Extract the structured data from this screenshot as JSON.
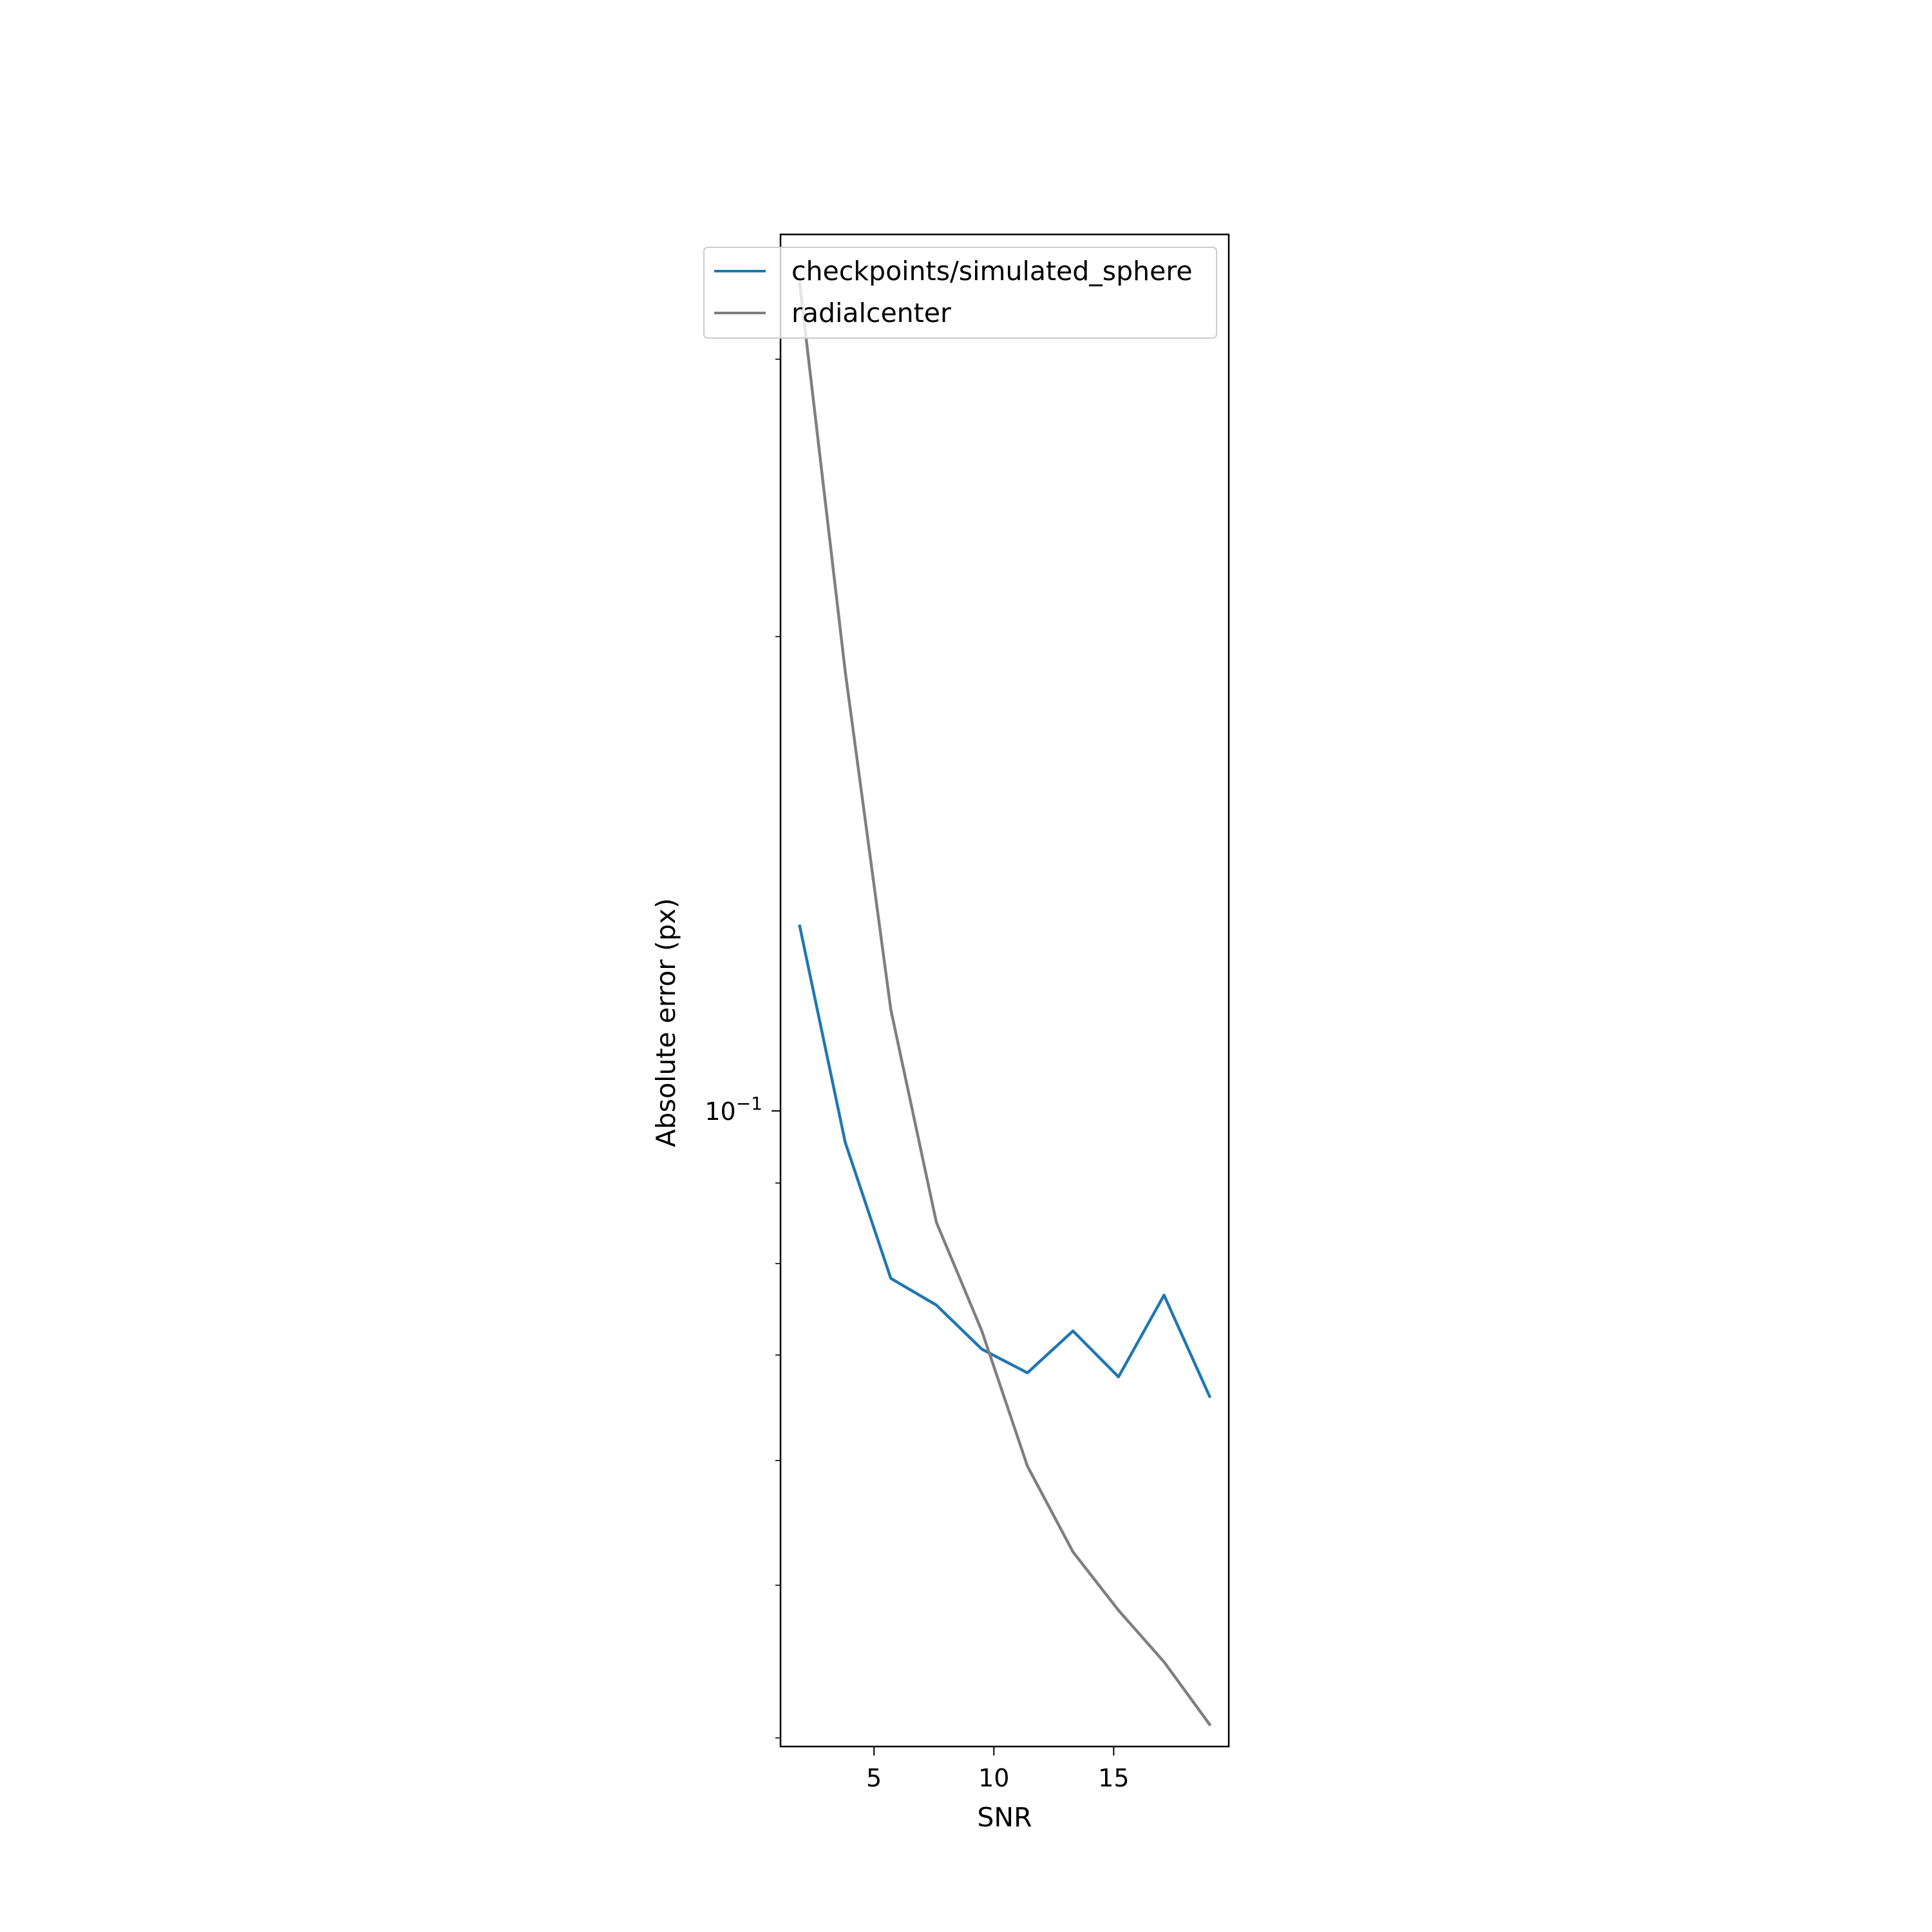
{
  "chart_data": {
    "type": "line",
    "title": "",
    "xlabel": "SNR",
    "ylabel": "Absolute error (px)",
    "x_scale": "linear",
    "y_scale": "log",
    "xlim": [
      1.1,
      19.8
    ],
    "ylim": [
      0.0395,
      0.36
    ],
    "x_ticks": [
      {
        "value": 5,
        "label": "5"
      },
      {
        "value": 10,
        "label": "10"
      },
      {
        "value": 15,
        "label": "15"
      }
    ],
    "y_major_ticks": [
      {
        "value": 0.1,
        "base": "10",
        "exp": "−1"
      }
    ],
    "grid": false,
    "legend_position": "upper right",
    "series": [
      {
        "name": "checkpoints/simulated_sphere",
        "color": "#1f77b4",
        "x": [
          1.9,
          3.8,
          5.7,
          7.6,
          9.5,
          11.4,
          13.3,
          15.2,
          17.1,
          19.0
        ],
        "y": [
          0.131,
          0.0955,
          0.0783,
          0.0753,
          0.0706,
          0.0682,
          0.0725,
          0.0678,
          0.0764,
          0.0659
        ]
      },
      {
        "name": "radialcenter",
        "color": "#7f7f7f",
        "x": [
          1.9,
          3.8,
          5.7,
          7.6,
          9.5,
          11.4,
          13.3,
          15.2,
          17.1,
          19.0
        ],
        "y": [
          0.335,
          0.19,
          0.116,
          0.085,
          0.0725,
          0.0595,
          0.0525,
          0.0482,
          0.0447,
          0.0408
        ]
      }
    ]
  }
}
